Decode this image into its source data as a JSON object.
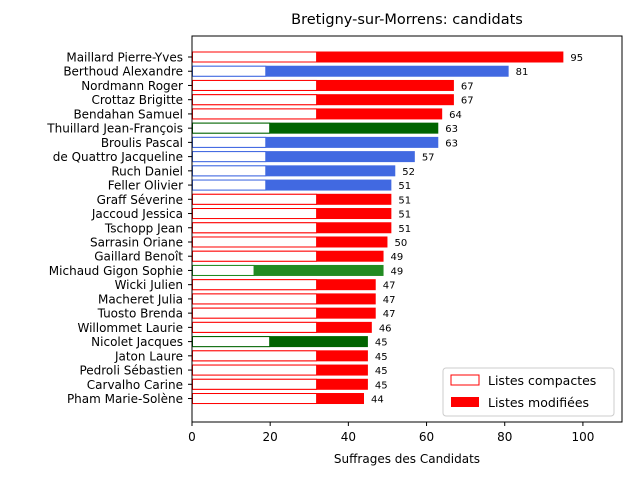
{
  "chart_data": {
    "type": "bar",
    "orientation": "horizontal",
    "title": "Bretigny-sur-Morrens: candidats",
    "xlabel": "Suffrages des Candidats",
    "ylabel": "",
    "xlim": [
      0,
      110
    ],
    "xticks": [
      0,
      20,
      40,
      60,
      80,
      100
    ],
    "grid": false,
    "legend_position": "bottom-right",
    "legend": [
      {
        "label": "Listes compactes",
        "style": "outline",
        "color": "#ff0000"
      },
      {
        "label": "Listes modifiées",
        "style": "filled",
        "color": "#ff0000"
      }
    ],
    "colors": {
      "red": "#ff0000",
      "blue": "#4169e1",
      "darkgreen": "#006400",
      "green": "#228b22"
    },
    "candidates": [
      {
        "name": "Maillard Pierre-Yves",
        "total": 95,
        "compact": 32,
        "color": "red"
      },
      {
        "name": "Berthoud Alexandre",
        "total": 81,
        "compact": 19,
        "color": "blue"
      },
      {
        "name": "Nordmann Roger",
        "total": 67,
        "compact": 32,
        "color": "red"
      },
      {
        "name": "Crottaz Brigitte",
        "total": 67,
        "compact": 32,
        "color": "red"
      },
      {
        "name": "Bendahan Samuel",
        "total": 64,
        "compact": 32,
        "color": "red"
      },
      {
        "name": "Thuillard Jean-François",
        "total": 63,
        "compact": 20,
        "color": "darkgreen"
      },
      {
        "name": "Broulis Pascal",
        "total": 63,
        "compact": 19,
        "color": "blue"
      },
      {
        "name": "de Quattro Jacqueline",
        "total": 57,
        "compact": 19,
        "color": "blue"
      },
      {
        "name": "Ruch Daniel",
        "total": 52,
        "compact": 19,
        "color": "blue"
      },
      {
        "name": "Feller Olivier",
        "total": 51,
        "compact": 19,
        "color": "blue"
      },
      {
        "name": "Graff Séverine",
        "total": 51,
        "compact": 32,
        "color": "red"
      },
      {
        "name": "Jaccoud Jessica",
        "total": 51,
        "compact": 32,
        "color": "red"
      },
      {
        "name": "Tschopp Jean",
        "total": 51,
        "compact": 32,
        "color": "red"
      },
      {
        "name": "Sarrasin Oriane",
        "total": 50,
        "compact": 32,
        "color": "red"
      },
      {
        "name": "Gaillard Benoît",
        "total": 49,
        "compact": 32,
        "color": "red"
      },
      {
        "name": "Michaud Gigon Sophie",
        "total": 49,
        "compact": 16,
        "color": "green"
      },
      {
        "name": "Wicki Julien",
        "total": 47,
        "compact": 32,
        "color": "red"
      },
      {
        "name": "Macheret Julia",
        "total": 47,
        "compact": 32,
        "color": "red"
      },
      {
        "name": "Tuosto Brenda",
        "total": 47,
        "compact": 32,
        "color": "red"
      },
      {
        "name": "Willommet Laurie",
        "total": 46,
        "compact": 32,
        "color": "red"
      },
      {
        "name": "Nicolet Jacques",
        "total": 45,
        "compact": 20,
        "color": "darkgreen"
      },
      {
        "name": "Jaton Laure",
        "total": 45,
        "compact": 32,
        "color": "red"
      },
      {
        "name": "Pedroli Sébastien",
        "total": 45,
        "compact": 32,
        "color": "red"
      },
      {
        "name": "Carvalho Carine",
        "total": 45,
        "compact": 32,
        "color": "red"
      },
      {
        "name": "Pham Marie-Solène",
        "total": 44,
        "compact": 32,
        "color": "red"
      }
    ]
  }
}
